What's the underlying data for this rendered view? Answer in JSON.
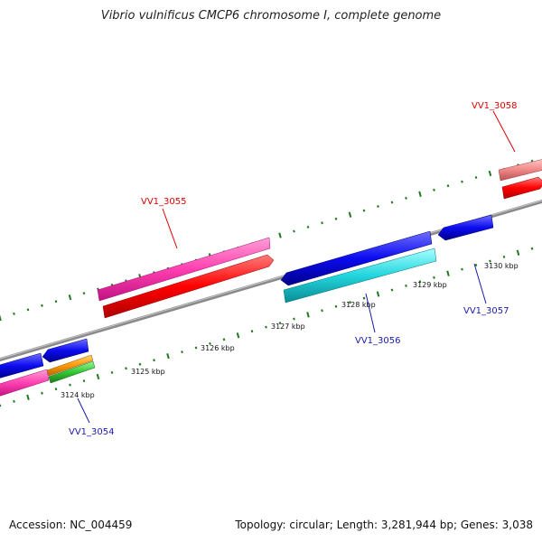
{
  "title": "Vibrio vulnificus CMCP6 chromosome I, complete genome",
  "footer": {
    "accession": "Accession: NC_004459",
    "summary": "Topology: circular; Length: 3,281,944 bp; Genes: 3,038"
  },
  "colors": {
    "backbone": "#8a8a8a",
    "tick": "#1f7a1f",
    "label_forward": "#dd0000",
    "label_reverse": "#1a1aaa"
  },
  "scale_labels": [
    "3124 kbp",
    "3125 kbp",
    "3126 kbp",
    "3127 kbp",
    "3128 kbp",
    "3129 kbp",
    "3130 kbp"
  ],
  "gene_labels": [
    {
      "name": "VV1_3055",
      "strand": "forward"
    },
    {
      "name": "VV1_3058",
      "strand": "forward"
    },
    {
      "name": "VV1_3054",
      "strand": "reverse"
    },
    {
      "name": "VV1_3056",
      "strand": "reverse"
    },
    {
      "name": "VV1_3057",
      "strand": "reverse"
    }
  ]
}
